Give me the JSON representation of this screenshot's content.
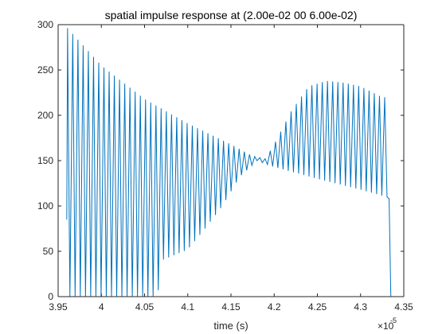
{
  "chart_data": {
    "type": "line",
    "title": "spatial impulse response at (2.00e-02 00 6.00e-02)",
    "xlabel": "time (s)",
    "ylabel": "",
    "x_exponent_base": "×10",
    "x_exponent_power": "-5",
    "xlim": [
      3.95,
      4.35
    ],
    "ylim": [
      0,
      300
    ],
    "xticks": [
      3.95,
      4,
      4.05,
      4.1,
      4.15,
      4.2,
      4.25,
      4.3,
      4.35
    ],
    "xtick_labels": [
      "3.95",
      "4",
      "4.05",
      "4.1",
      "4.15",
      "4.2",
      "4.25",
      "4.3",
      "4.35"
    ],
    "yticks": [
      0,
      50,
      100,
      150,
      200,
      250,
      300
    ],
    "ytick_labels": [
      "0",
      "50",
      "100",
      "150",
      "200",
      "250",
      "300"
    ],
    "grid": false,
    "series": [
      {
        "color": "#0072BD",
        "x_start": 3.96,
        "x_end": 4.333,
        "upper_envelope": [
          {
            "x": 3.96,
            "y": 297
          },
          {
            "x": 4.0,
            "y": 255
          },
          {
            "x": 4.05,
            "y": 218
          },
          {
            "x": 4.1,
            "y": 191
          },
          {
            "x": 4.15,
            "y": 168
          },
          {
            "x": 4.175,
            "y": 155
          },
          {
            "x": 4.19,
            "y": 152
          },
          {
            "x": 4.2,
            "y": 168
          },
          {
            "x": 4.22,
            "y": 205
          },
          {
            "x": 4.24,
            "y": 232
          },
          {
            "x": 4.26,
            "y": 238
          },
          {
            "x": 4.28,
            "y": 236
          },
          {
            "x": 4.3,
            "y": 232
          },
          {
            "x": 4.325,
            "y": 220
          }
        ],
        "lower_envelope": [
          {
            "x": 3.96,
            "y": 0
          },
          {
            "x": 4.065,
            "y": 0
          },
          {
            "x": 4.07,
            "y": 40
          },
          {
            "x": 4.1,
            "y": 52
          },
          {
            "x": 4.12,
            "y": 75
          },
          {
            "x": 4.14,
            "y": 100
          },
          {
            "x": 4.16,
            "y": 132
          },
          {
            "x": 4.18,
            "y": 150
          },
          {
            "x": 4.2,
            "y": 143
          },
          {
            "x": 4.25,
            "y": 130
          },
          {
            "x": 4.3,
            "y": 118
          },
          {
            "x": 4.33,
            "y": 110
          }
        ],
        "oscillation_count": 62,
        "first_value": 85,
        "end_value": 108
      }
    ]
  }
}
